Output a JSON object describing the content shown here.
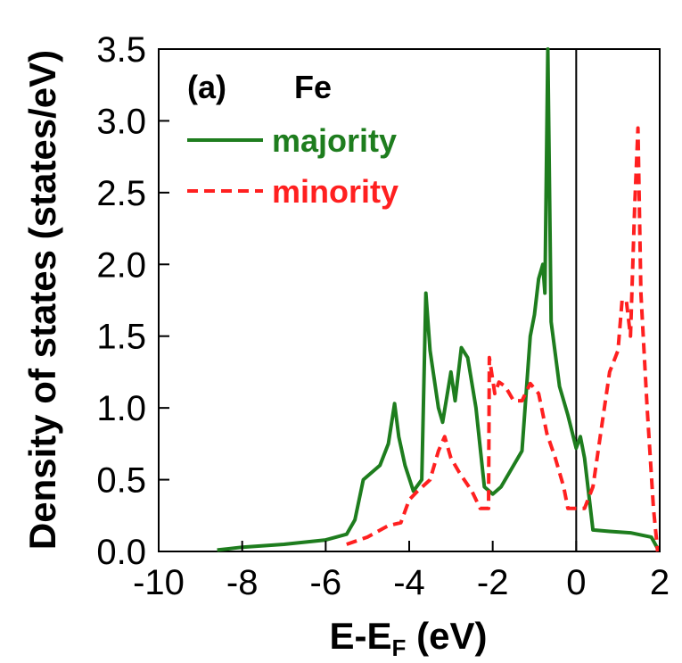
{
  "chart_data": {
    "type": "line",
    "panel_label": "(a)",
    "material": "Fe",
    "xlabel": "E-E",
    "xlabel_sub": "F",
    "xlabel_unit": " (eV)",
    "ylabel": "Density of states (states/eV)",
    "xlim": [
      -10,
      2
    ],
    "ylim": [
      0,
      3.5
    ],
    "xticks": [
      "-10",
      "-8",
      "-6",
      "-4",
      "-2",
      "0",
      "2"
    ],
    "yticks": [
      "0.0",
      "0.5",
      "1.0",
      "1.5",
      "2.0",
      "2.5",
      "3.0",
      "3.5"
    ],
    "fermi_level": 0,
    "legend_position": "top-left",
    "series": [
      {
        "name": "majority",
        "color": "#1e7d1e",
        "style": "solid",
        "points": [
          [
            -8.6,
            0.01
          ],
          [
            -8.0,
            0.03
          ],
          [
            -7.0,
            0.05
          ],
          [
            -6.0,
            0.08
          ],
          [
            -5.5,
            0.12
          ],
          [
            -5.3,
            0.22
          ],
          [
            -5.1,
            0.5
          ],
          [
            -4.9,
            0.55
          ],
          [
            -4.7,
            0.6
          ],
          [
            -4.5,
            0.75
          ],
          [
            -4.35,
            1.03
          ],
          [
            -4.25,
            0.8
          ],
          [
            -4.1,
            0.6
          ],
          [
            -3.9,
            0.42
          ],
          [
            -3.7,
            0.5
          ],
          [
            -3.6,
            1.8
          ],
          [
            -3.5,
            1.4
          ],
          [
            -3.4,
            1.2
          ],
          [
            -3.3,
            1.0
          ],
          [
            -3.2,
            0.9
          ],
          [
            -3.0,
            1.25
          ],
          [
            -2.9,
            1.05
          ],
          [
            -2.75,
            1.42
          ],
          [
            -2.6,
            1.35
          ],
          [
            -2.4,
            1.0
          ],
          [
            -2.2,
            0.45
          ],
          [
            -2.0,
            0.4
          ],
          [
            -1.8,
            0.45
          ],
          [
            -1.5,
            0.6
          ],
          [
            -1.3,
            0.7
          ],
          [
            -1.1,
            1.5
          ],
          [
            -1.0,
            1.65
          ],
          [
            -0.9,
            1.9
          ],
          [
            -0.8,
            2.0
          ],
          [
            -0.75,
            1.8
          ],
          [
            -0.68,
            3.5
          ],
          [
            -0.6,
            1.6
          ],
          [
            -0.4,
            1.15
          ],
          [
            -0.2,
            0.95
          ],
          [
            0.0,
            0.72
          ],
          [
            0.1,
            0.8
          ],
          [
            0.2,
            0.65
          ],
          [
            0.4,
            0.15
          ],
          [
            0.8,
            0.14
          ],
          [
            1.3,
            0.13
          ],
          [
            1.8,
            0.1
          ],
          [
            1.95,
            0.02
          ]
        ]
      },
      {
        "name": "minority",
        "color": "#ff2020",
        "style": "dashed",
        "points": [
          [
            -5.5,
            0.05
          ],
          [
            -5.0,
            0.1
          ],
          [
            -4.5,
            0.18
          ],
          [
            -4.2,
            0.2
          ],
          [
            -4.0,
            0.36
          ],
          [
            -3.8,
            0.42
          ],
          [
            -3.5,
            0.5
          ],
          [
            -3.3,
            0.7
          ],
          [
            -3.15,
            0.8
          ],
          [
            -3.0,
            0.65
          ],
          [
            -2.8,
            0.55
          ],
          [
            -2.5,
            0.42
          ],
          [
            -2.3,
            0.3
          ],
          [
            -2.1,
            0.3
          ],
          [
            -2.08,
            1.35
          ],
          [
            -1.95,
            1.1
          ],
          [
            -1.85,
            1.18
          ],
          [
            -1.7,
            1.15
          ],
          [
            -1.5,
            1.05
          ],
          [
            -1.3,
            1.05
          ],
          [
            -1.1,
            1.17
          ],
          [
            -0.9,
            1.1
          ],
          [
            -0.7,
            0.82
          ],
          [
            -0.5,
            0.65
          ],
          [
            -0.3,
            0.45
          ],
          [
            -0.2,
            0.3
          ],
          [
            0.0,
            0.3
          ],
          [
            0.2,
            0.3
          ],
          [
            0.4,
            0.45
          ],
          [
            0.6,
            0.85
          ],
          [
            0.8,
            1.25
          ],
          [
            1.0,
            1.4
          ],
          [
            1.1,
            1.75
          ],
          [
            1.2,
            1.75
          ],
          [
            1.3,
            1.5
          ],
          [
            1.4,
            2.4
          ],
          [
            1.48,
            2.95
          ],
          [
            1.55,
            1.8
          ],
          [
            1.7,
            1.0
          ],
          [
            1.85,
            0.3
          ],
          [
            1.95,
            0.0
          ]
        ]
      }
    ]
  }
}
